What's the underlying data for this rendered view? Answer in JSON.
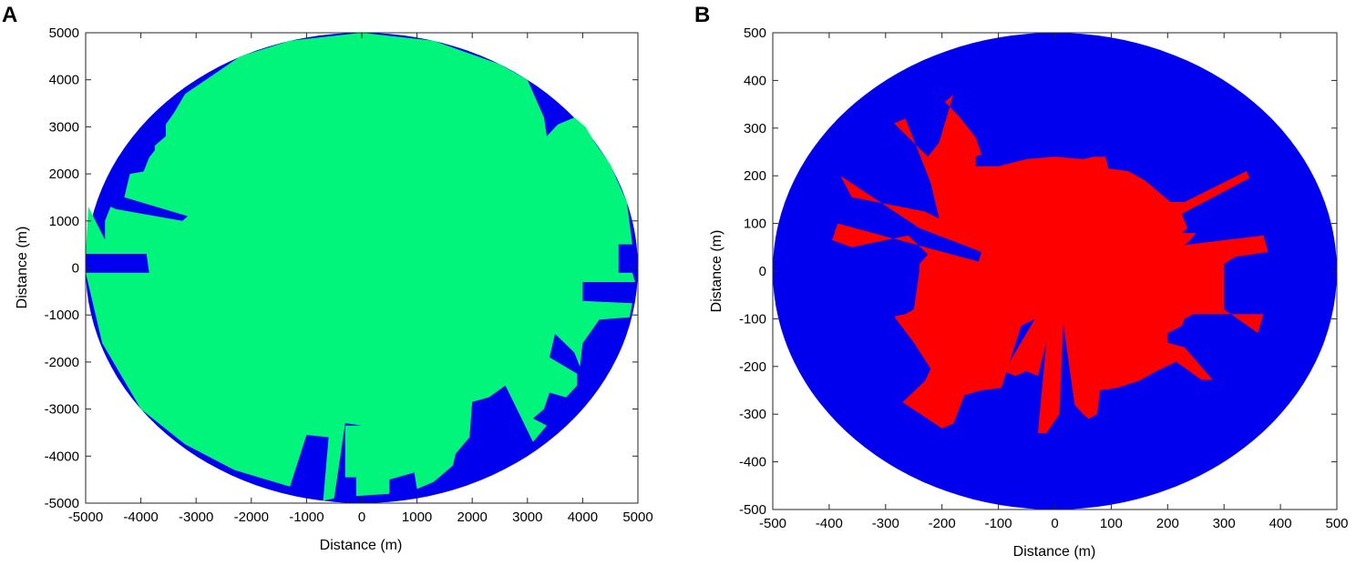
{
  "figure": {
    "panels": [
      {
        "label": "A"
      },
      {
        "label": "B"
      }
    ]
  },
  "chart_data": [
    {
      "type": "area",
      "panel": "A",
      "title": "",
      "xlabel": "Distance (m)",
      "ylabel": "Distance (m)",
      "xlim": [
        -5000,
        5000
      ],
      "ylim": [
        -5000,
        5000
      ],
      "xticks": [
        -5000,
        -4000,
        -3000,
        -2000,
        -1000,
        0,
        1000,
        2000,
        3000,
        4000,
        5000
      ],
      "yticks": [
        -5000,
        -4000,
        -3000,
        -2000,
        -1000,
        0,
        1000,
        2000,
        3000,
        4000,
        5000
      ],
      "grid": false,
      "colors": {
        "outer": "#0000ee",
        "inner": "#00f57a",
        "frame": "#262626"
      },
      "series": [
        {
          "role": "outer-disk",
          "shape": "circle",
          "center": [
            0,
            0
          ],
          "radius": 5000
        },
        {
          "role": "inner-region",
          "shape": "polygon",
          "points": [
            [
              0,
              5000
            ],
            [
              1300,
              4830
            ],
            [
              2500,
              4330
            ],
            [
              3000,
              4000
            ],
            [
              3300,
              3200
            ],
            [
              3350,
              2800
            ],
            [
              3550,
              3050
            ],
            [
              3850,
              3200
            ],
            [
              4050,
              3000
            ],
            [
              4200,
              2700
            ],
            [
              4500,
              2200
            ],
            [
              4800,
              1400
            ],
            [
              4900,
              500
            ],
            [
              4650,
              500
            ],
            [
              4650,
              -100
            ],
            [
              4900,
              -100
            ],
            [
              4950,
              -300
            ],
            [
              4000,
              -300
            ],
            [
              4000,
              -700
            ],
            [
              4900,
              -750
            ],
            [
              4850,
              -1050
            ],
            [
              4300,
              -1100
            ],
            [
              4000,
              -1600
            ],
            [
              3950,
              -2100
            ],
            [
              3850,
              -1800
            ],
            [
              3500,
              -1400
            ],
            [
              3400,
              -1900
            ],
            [
              3900,
              -2250
            ],
            [
              3900,
              -2500
            ],
            [
              3700,
              -2750
            ],
            [
              3400,
              -2650
            ],
            [
              3300,
              -3000
            ],
            [
              3100,
              -3200
            ],
            [
              3350,
              -3350
            ],
            [
              3100,
              -3700
            ],
            [
              2600,
              -2500
            ],
            [
              2300,
              -2750
            ],
            [
              2000,
              -2850
            ],
            [
              1950,
              -3600
            ],
            [
              1700,
              -3950
            ],
            [
              1650,
              -4200
            ],
            [
              1300,
              -4550
            ],
            [
              1000,
              -4700
            ],
            [
              950,
              -4350
            ],
            [
              500,
              -4500
            ],
            [
              500,
              -4800
            ],
            [
              -100,
              -4850
            ],
            [
              -100,
              -4450
            ],
            [
              -300,
              -4450
            ],
            [
              -300,
              -3350
            ],
            [
              0,
              -3350
            ],
            [
              -300,
              -3300
            ],
            [
              -500,
              -4900
            ],
            [
              -700,
              -4950
            ],
            [
              -600,
              -3600
            ],
            [
              -1000,
              -3550
            ],
            [
              -1300,
              -4650
            ],
            [
              -2300,
              -4300
            ],
            [
              -3200,
              -3750
            ],
            [
              -4000,
              -3000
            ],
            [
              -4700,
              -1600
            ],
            [
              -5000,
              -100
            ],
            [
              -3850,
              -100
            ],
            [
              -3900,
              300
            ],
            [
              -5000,
              300
            ],
            [
              -4950,
              1300
            ],
            [
              -4650,
              600
            ],
            [
              -4650,
              1000
            ],
            [
              -4550,
              1300
            ],
            [
              -4450,
              1250
            ],
            [
              -3250,
              1000
            ],
            [
              -3150,
              1100
            ],
            [
              -4300,
              1500
            ],
            [
              -4200,
              2000
            ],
            [
              -3950,
              2050
            ],
            [
              -3850,
              2350
            ],
            [
              -3750,
              2500
            ],
            [
              -3750,
              2600
            ],
            [
              -3550,
              2800
            ],
            [
              -3550,
              3050
            ],
            [
              -3400,
              3300
            ],
            [
              -3200,
              3700
            ],
            [
              -2200,
              4500
            ],
            [
              -1300,
              4830
            ],
            [
              0,
              5000
            ]
          ]
        }
      ]
    },
    {
      "type": "area",
      "panel": "B",
      "title": "",
      "xlabel": "Distance (m)",
      "ylabel": "Distance (m)",
      "xlim": [
        -500,
        500
      ],
      "ylim": [
        -500,
        500
      ],
      "xticks": [
        -500,
        -400,
        -300,
        -200,
        -100,
        0,
        100,
        200,
        300,
        400,
        500
      ],
      "yticks": [
        -500,
        -400,
        -300,
        -200,
        -100,
        0,
        100,
        200,
        300,
        400,
        500
      ],
      "grid": false,
      "colors": {
        "outer": "#0000ee",
        "inner": "#ff0000",
        "frame": "#262626"
      },
      "series": [
        {
          "role": "outer-disk",
          "shape": "circle",
          "center": [
            0,
            0
          ],
          "radius": 500
        },
        {
          "role": "inner-region",
          "shape": "polygon",
          "points": [
            [
              -100,
              220
            ],
            [
              -50,
              235
            ],
            [
              0,
              240
            ],
            [
              50,
              235
            ],
            [
              70,
              240
            ],
            [
              90,
              240
            ],
            [
              95,
              215
            ],
            [
              130,
              210
            ],
            [
              160,
              190
            ],
            [
              190,
              160
            ],
            [
              205,
              145
            ],
            [
              230,
              145
            ],
            [
              340,
              210
            ],
            [
              345,
              195
            ],
            [
              225,
              120
            ],
            [
              235,
              90
            ],
            [
              225,
              80
            ],
            [
              250,
              80
            ],
            [
              240,
              65
            ],
            [
              230,
              55
            ],
            [
              370,
              75
            ],
            [
              378,
              40
            ],
            [
              320,
              30
            ],
            [
              300,
              15
            ],
            [
              300,
              -50
            ],
            [
              300,
              -80
            ],
            [
              360,
              -130
            ],
            [
              370,
              -90
            ],
            [
              245,
              -90
            ],
            [
              230,
              -100
            ],
            [
              225,
              -115
            ],
            [
              200,
              -130
            ],
            [
              200,
              -150
            ],
            [
              230,
              -160
            ],
            [
              280,
              -228
            ],
            [
              260,
              -228
            ],
            [
              215,
              -190
            ],
            [
              180,
              -210
            ],
            [
              150,
              -230
            ],
            [
              110,
              -245
            ],
            [
              80,
              -250
            ],
            [
              75,
              -300
            ],
            [
              60,
              -310
            ],
            [
              50,
              -300
            ],
            [
              35,
              -280
            ],
            [
              15,
              -110
            ],
            [
              8,
              -300
            ],
            [
              -15,
              -340
            ],
            [
              -30,
              -340
            ],
            [
              -15,
              -150
            ],
            [
              -30,
              -220
            ],
            [
              -50,
              -210
            ],
            [
              -70,
              -220
            ],
            [
              -90,
              -210
            ],
            [
              -35,
              -100
            ],
            [
              -60,
              -115
            ],
            [
              -95,
              -245
            ],
            [
              -130,
              -250
            ],
            [
              -160,
              -260
            ],
            [
              -180,
              -320
            ],
            [
              -200,
              -330
            ],
            [
              -270,
              -275
            ],
            [
              -230,
              -230
            ],
            [
              -220,
              -205
            ],
            [
              -250,
              -150
            ],
            [
              -285,
              -95
            ],
            [
              -265,
              -90
            ],
            [
              -250,
              -80
            ],
            [
              -240,
              0
            ],
            [
              -240,
              15
            ],
            [
              -225,
              35
            ],
            [
              -260,
              75
            ],
            [
              -360,
              50
            ],
            [
              -395,
              65
            ],
            [
              -385,
              100
            ],
            [
              -135,
              20
            ],
            [
              -130,
              40
            ],
            [
              -240,
              90
            ],
            [
              -380,
              200
            ],
            [
              -360,
              155
            ],
            [
              -230,
              125
            ],
            [
              -205,
              110
            ],
            [
              -210,
              135
            ],
            [
              -220,
              185
            ],
            [
              -265,
              320
            ],
            [
              -285,
              310
            ],
            [
              -225,
              240
            ],
            [
              -205,
              270
            ],
            [
              -180,
              370
            ],
            [
              -195,
              355
            ],
            [
              -170,
              325
            ],
            [
              -140,
              280
            ],
            [
              -130,
              245
            ],
            [
              -140,
              240
            ],
            [
              -140,
              220
            ],
            [
              -100,
              220
            ]
          ]
        }
      ]
    }
  ]
}
